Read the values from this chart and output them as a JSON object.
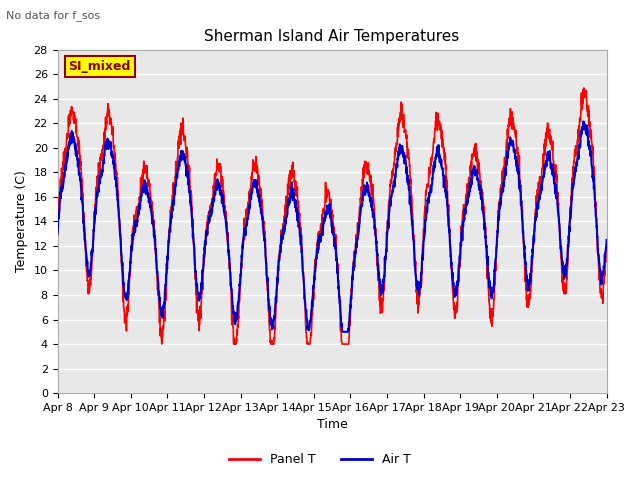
{
  "title": "Sherman Island Air Temperatures",
  "xlabel": "Time",
  "ylabel": "Temperature (C)",
  "note": "No data for f_sos",
  "legend_label": "SI_mixed",
  "series": [
    "Panel T",
    "Air T"
  ],
  "series_colors": [
    "red",
    "blue"
  ],
  "ylim": [
    0,
    28
  ],
  "yticks": [
    0,
    2,
    4,
    6,
    8,
    10,
    12,
    14,
    16,
    18,
    20,
    22,
    24,
    26,
    28
  ],
  "xtick_labels": [
    "Apr 8",
    "Apr 9",
    "Apr 10",
    "Apr 11",
    "Apr 12",
    "Apr 13",
    "Apr 14",
    "Apr 15",
    "Apr 16",
    "Apr 17",
    "Apr 18",
    "Apr 19",
    "Apr 20",
    "Apr 21",
    "Apr 22",
    "Apr 23"
  ],
  "plot_bg": "#e8e8e8",
  "grid_color": "white",
  "legend_box_color": "yellow",
  "legend_box_edge": "#8b0000",
  "panel_color": "red",
  "air_color": "#0000cd",
  "panel_linewidth": 1.2,
  "air_linewidth": 1.5,
  "title_fontsize": 11,
  "axis_fontsize": 9,
  "tick_fontsize": 8
}
